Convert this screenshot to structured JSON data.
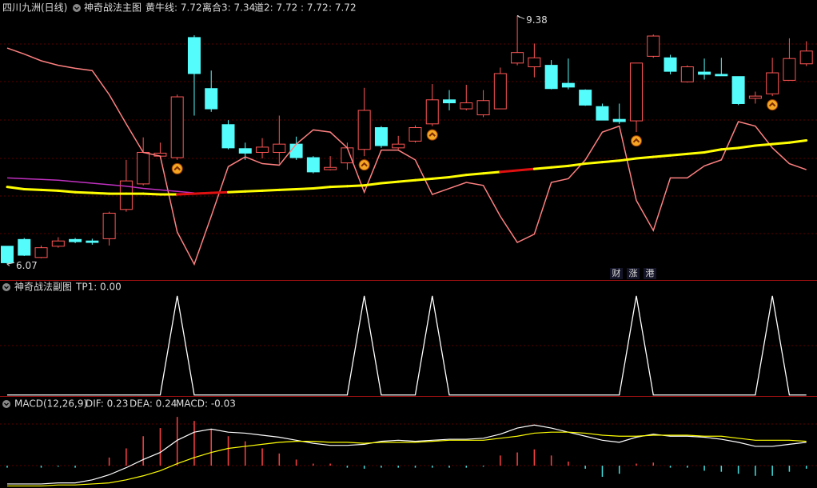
{
  "chart_data": [
    {
      "type": "candlestick",
      "stock": "四川九洲(日线)",
      "title": "神奇战法主图",
      "legend": [
        {
          "text": "黄牛线: 7.72",
          "color": "#ffff00"
        },
        {
          "text": "离合3: 7.34",
          "color": "#ff8080"
        },
        {
          "text": "道2: 7.72",
          "color": "#ff40ff"
        },
        {
          "text": ": 7.72",
          "color": "#ff5050"
        },
        {
          "text": ": 7.72",
          "color": "#ffff00"
        }
      ],
      "open": [
        6.31,
        6.4,
        6.16,
        6.31,
        6.4,
        6.38,
        6.41,
        6.8,
        7.14,
        7.51,
        7.49,
        9.09,
        8.41,
        7.93,
        7.61,
        7.56,
        7.56,
        7.67,
        7.49,
        7.33,
        7.42,
        7.6,
        7.89,
        7.62,
        7.71,
        7.94,
        8.26,
        8.14,
        8.06,
        8.14,
        8.75,
        8.7,
        8.72,
        8.48,
        8.39,
        8.17,
        8.0,
        7.98,
        8.84,
        8.82,
        8.5,
        8.63,
        8.6,
        8.57,
        8.28,
        8.34,
        8.52,
        8.74
      ],
      "high": [
        6.31,
        6.42,
        6.32,
        6.43,
        6.42,
        6.41,
        6.77,
        7.46,
        7.76,
        7.69,
        8.33,
        9.12,
        8.65,
        7.99,
        7.69,
        7.75,
        8.05,
        7.77,
        7.51,
        7.51,
        7.69,
        8.42,
        7.91,
        7.78,
        7.92,
        8.47,
        8.39,
        8.46,
        8.39,
        8.69,
        9.38,
        9.01,
        8.79,
        8.81,
        8.4,
        8.21,
        8.21,
        8.75,
        9.13,
        8.86,
        8.72,
        8.81,
        8.82,
        8.57,
        8.37,
        8.82,
        9.08,
        9.04
      ],
      "low": [
        6.07,
        6.18,
        6.15,
        6.29,
        6.35,
        6.33,
        6.32,
        6.77,
        7.12,
        7.48,
        7.46,
        8.05,
        8.1,
        7.6,
        7.46,
        7.48,
        7.41,
        7.46,
        7.28,
        7.32,
        7.33,
        7.51,
        7.62,
        7.6,
        7.69,
        7.91,
        8.12,
        8.12,
        8.03,
        8.14,
        8.72,
        8.56,
        8.4,
        8.4,
        8.18,
        7.99,
        7.94,
        7.83,
        8.82,
        8.6,
        8.49,
        8.53,
        8.58,
        8.19,
        8.21,
        8.31,
        8.52,
        8.71
      ],
      "close": [
        6.09,
        6.19,
        6.29,
        6.38,
        6.37,
        6.36,
        6.75,
        7.18,
        7.56,
        7.55,
        8.3,
        8.61,
        8.14,
        7.62,
        7.55,
        7.63,
        7.67,
        7.49,
        7.3,
        7.36,
        7.62,
        8.12,
        7.65,
        7.67,
        7.89,
        8.26,
        8.22,
        8.22,
        8.25,
        8.61,
        8.89,
        8.82,
        8.41,
        8.43,
        8.19,
        7.99,
        7.97,
        8.75,
        9.11,
        8.64,
        8.7,
        8.6,
        8.58,
        8.21,
        8.31,
        8.62,
        8.81,
        8.91
      ],
      "up_color": "#ff5555",
      "down_color": "#54fcfc",
      "series": [
        {
          "color": "#ff8080",
          "values": [
            8.95,
            8.87,
            8.78,
            8.72,
            8.68,
            8.65,
            8.33,
            7.94,
            7.56,
            7.51,
            6.5,
            6.07,
            6.71,
            7.37,
            7.5,
            7.41,
            7.39,
            7.67,
            7.86,
            7.83,
            7.62,
            7.03,
            7.59,
            7.59,
            7.46,
            7.0,
            7.08,
            7.16,
            7.12,
            6.71,
            6.36,
            6.47,
            7.16,
            7.21,
            7.46,
            7.83,
            7.91,
            6.92,
            6.52,
            7.22,
            7.22,
            7.38,
            7.46,
            7.97,
            7.91,
            7.62,
            7.41,
            7.33
          ]
        },
        {
          "color": "#c030c0",
          "values": [
            7.22,
            7.21,
            7.2,
            7.19,
            7.17,
            7.15,
            7.13,
            7.11,
            7.08,
            7.06,
            7.04,
            7.02,
            null,
            null,
            null,
            null,
            null,
            null,
            null,
            null,
            null,
            null,
            null,
            null,
            null,
            null,
            null,
            null,
            null,
            null,
            null,
            null,
            null,
            null,
            null,
            null,
            null,
            null,
            null,
            null,
            null,
            null,
            null,
            null,
            null,
            null,
            null,
            null
          ]
        },
        {
          "color": "#ffff00",
          "values": [
            7.1,
            7.07,
            7.06,
            7.05,
            7.03,
            7.02,
            7.01,
            7.01,
            7.01,
            7.0,
            7.0,
            7.01,
            7.02,
            7.03,
            7.04,
            7.05,
            7.06,
            7.07,
            7.08,
            7.1,
            7.11,
            7.12,
            7.15,
            7.17,
            7.19,
            7.21,
            7.23,
            7.26,
            7.28,
            7.3,
            7.32,
            7.34,
            7.36,
            7.38,
            7.41,
            7.43,
            7.45,
            7.48,
            7.5,
            7.52,
            7.54,
            7.56,
            7.6,
            7.62,
            7.65,
            7.67,
            7.69,
            7.72
          ],
          "colors": [
            "#ffff00",
            "#ffff00",
            "#ffff00",
            "#ffff00",
            "#ffff00",
            "#ffff00",
            "#ffff00",
            "#ffff00",
            "#ffff00",
            "#ffff00",
            "#e01010",
            "#e01010",
            "#e01010",
            "#ffff00",
            "#ffff00",
            "#ffff00",
            "#ffff00",
            "#ffff00",
            "#ffff00",
            "#ffff00",
            "#ffff00",
            "#ffff00",
            "#ffff00",
            "#ffff00",
            "#ffff00",
            "#ffff00",
            "#ffff00",
            "#ffff00",
            "#ffff00",
            "#e01010",
            "#e01010",
            "#ffff00",
            "#ffff00",
            "#ffff00",
            "#ffff00",
            "#ffff00",
            "#ffff00",
            "#ffff00",
            "#ffff00",
            "#ffff00",
            "#ffff00",
            "#ffff00",
            "#ffff00",
            "#ffff00",
            "#ffff00",
            "#ffff00",
            "#ffff00",
            "#ffff00"
          ]
        }
      ],
      "signals": [
        10,
        21,
        25,
        37,
        45
      ],
      "signal_color": "#f5a623",
      "annotations": [
        {
          "text": "9.38",
          "index": 30
        },
        {
          "text": "6.07",
          "index": 0
        }
      ],
      "badges": [
        {
          "text": "财",
          "color": "#5aa0ff"
        },
        {
          "text": "涨",
          "color": "#ff4040"
        },
        {
          "text": "港",
          "color": "#40e040"
        }
      ],
      "ylim": [
        5.86,
        9.59
      ]
    },
    {
      "type": "line",
      "title": "神奇战法副图",
      "legend": [
        {
          "text": "TP1: 0.00",
          "color": "#dcdcdc"
        }
      ],
      "values": [
        0,
        0,
        0,
        0,
        0,
        0,
        0,
        0,
        0,
        0,
        1,
        0,
        0,
        0,
        0,
        0,
        0,
        0,
        0,
        0,
        0,
        1,
        0,
        0,
        0,
        1,
        0,
        0,
        0,
        0,
        0,
        0,
        0,
        0,
        0,
        0,
        0,
        1,
        0,
        0,
        0,
        0,
        0,
        0,
        0,
        1,
        0,
        0
      ],
      "color": "#ffffff",
      "ylim": [
        -0.01,
        1.16
      ]
    },
    {
      "type": "macd",
      "title": "MACD(12,26,9)",
      "legend": [
        {
          "text": "DIF: 0.23",
          "color": "#ffffff"
        },
        {
          "text": "DEA: 0.24",
          "color": "#ffff00"
        },
        {
          "text": "MACD: -0.03",
          "color": "#ff40ff"
        }
      ],
      "dif": [
        -0.18,
        -0.18,
        -0.18,
        -0.17,
        -0.17,
        -0.14,
        -0.09,
        -0.02,
        0.06,
        0.13,
        0.25,
        0.33,
        0.36,
        0.33,
        0.32,
        0.3,
        0.28,
        0.25,
        0.22,
        0.2,
        0.2,
        0.21,
        0.24,
        0.25,
        0.24,
        0.25,
        0.26,
        0.26,
        0.27,
        0.31,
        0.37,
        0.4,
        0.37,
        0.33,
        0.29,
        0.25,
        0.23,
        0.28,
        0.31,
        0.29,
        0.29,
        0.28,
        0.26,
        0.23,
        0.19,
        0.19,
        0.21,
        0.23
      ],
      "dea": [
        -0.2,
        -0.2,
        -0.2,
        -0.19,
        -0.19,
        -0.18,
        -0.17,
        -0.14,
        -0.1,
        -0.05,
        0.02,
        0.08,
        0.13,
        0.17,
        0.19,
        0.21,
        0.23,
        0.24,
        0.24,
        0.23,
        0.23,
        0.22,
        0.23,
        0.23,
        0.23,
        0.24,
        0.25,
        0.25,
        0.25,
        0.27,
        0.29,
        0.32,
        0.33,
        0.33,
        0.32,
        0.3,
        0.29,
        0.29,
        0.3,
        0.3,
        0.3,
        0.29,
        0.29,
        0.27,
        0.25,
        0.25,
        0.25,
        0.24
      ],
      "macd": [
        -0.02,
        0.0,
        -0.02,
        -0.01,
        -0.02,
        0.0,
        0.08,
        0.17,
        0.29,
        0.37,
        0.48,
        0.44,
        0.36,
        0.29,
        0.24,
        0.17,
        0.12,
        0.06,
        0.02,
        0.02,
        -0.02,
        -0.03,
        -0.02,
        -0.02,
        -0.02,
        -0.02,
        -0.02,
        -0.02,
        -0.01,
        0.1,
        0.13,
        0.16,
        0.1,
        0.04,
        -0.03,
        -0.11,
        -0.08,
        0.02,
        0.03,
        -0.02,
        -0.02,
        -0.05,
        -0.06,
        -0.08,
        -0.1,
        -0.1,
        -0.06,
        -0.03
      ],
      "dif_color": "#ffffff",
      "dea_color": "#ffff00",
      "up_color": "#ff4040",
      "down_color": "#40e0e0",
      "ylim": [
        -0.22,
        0.67
      ]
    }
  ]
}
